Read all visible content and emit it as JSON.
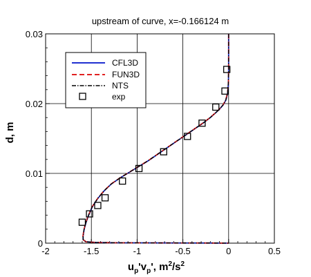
{
  "chart_data": {
    "type": "line",
    "title": "upstream of curve, x=-0.166124 m",
    "xlabel": "u_p'v_p', m²/s²",
    "xlabel_parts": {
      "base1": "u",
      "sub1": "p",
      "mid": "'v",
      "sub2": "p",
      "tail": "', m",
      "sup1": "2",
      "slash": "/s",
      "sup2": "2"
    },
    "ylabel": "d, m",
    "xlim": [
      -2,
      0.5
    ],
    "ylim": [
      0,
      0.03
    ],
    "xticks": [
      -2,
      -1.5,
      -1,
      -0.5,
      0,
      0.5
    ],
    "xtick_labels": [
      "-2",
      "-1.5",
      "-1",
      "-0.5",
      "0",
      "0.5"
    ],
    "yticks": [
      0,
      0.01,
      0.02,
      0.03
    ],
    "ytick_labels": [
      "0",
      "0.01",
      "0.02",
      "0.03"
    ],
    "grid": true,
    "legend_position": "top-left",
    "series": [
      {
        "name": "CFL3D",
        "style": "solid",
        "color": "#1f2fd0",
        "x": [
          0.0,
          0.0,
          -0.002,
          -0.01,
          -0.03,
          -0.06,
          -0.1,
          -0.14,
          -0.2,
          -0.28,
          -0.38,
          -0.48,
          -0.58,
          -0.68,
          -0.78,
          -0.88,
          -0.98,
          -1.08,
          -1.18,
          -1.28,
          -1.36,
          -1.43,
          -1.49,
          -1.53,
          -1.56,
          -1.58,
          -1.59,
          -1.59,
          -1.56,
          -1.45,
          -1.2,
          -0.7,
          -0.2,
          0.0
        ],
        "y": [
          0.03,
          0.025,
          0.023,
          0.0215,
          0.0205,
          0.0198,
          0.0192,
          0.0187,
          0.018,
          0.0172,
          0.0163,
          0.0154,
          0.0145,
          0.0136,
          0.0127,
          0.0118,
          0.011,
          0.0102,
          0.0094,
          0.0085,
          0.0075,
          0.0064,
          0.0052,
          0.004,
          0.0029,
          0.0019,
          0.001,
          0.0005,
          0.0002,
          0.0001,
          5e-05,
          3e-05,
          2e-05,
          0.0
        ]
      },
      {
        "name": "FUN3D",
        "style": "dashed",
        "color": "#e02020",
        "x": [
          0.0,
          0.0,
          -0.002,
          -0.012,
          -0.032,
          -0.062,
          -0.102,
          -0.142,
          -0.202,
          -0.282,
          -0.382,
          -0.482,
          -0.582,
          -0.682,
          -0.782,
          -0.882,
          -0.982,
          -1.082,
          -1.182,
          -1.282,
          -1.362,
          -1.432,
          -1.492,
          -1.532,
          -1.562,
          -1.582,
          -1.592,
          -1.59,
          -1.56,
          -1.45,
          -1.2,
          -0.7,
          -0.2,
          0.0
        ],
        "y": [
          0.03,
          0.025,
          0.023,
          0.0215,
          0.0205,
          0.0198,
          0.0192,
          0.0187,
          0.018,
          0.0172,
          0.0163,
          0.0154,
          0.0145,
          0.0136,
          0.0127,
          0.0118,
          0.011,
          0.0102,
          0.0094,
          0.0085,
          0.0075,
          0.0064,
          0.0052,
          0.004,
          0.0029,
          0.0019,
          0.001,
          0.0005,
          0.0002,
          0.0001,
          5e-05,
          3e-05,
          2e-05,
          0.0
        ]
      },
      {
        "name": "NTS",
        "style": "dashdot",
        "color": "#000000",
        "x": [
          0.0,
          0.0,
          -0.003,
          -0.011,
          -0.031,
          -0.061,
          -0.101,
          -0.141,
          -0.201,
          -0.281,
          -0.381,
          -0.481,
          -0.581,
          -0.681,
          -0.781,
          -0.881,
          -0.981,
          -1.081,
          -1.181,
          -1.281,
          -1.361,
          -1.431,
          -1.491,
          -1.531,
          -1.561,
          -1.581,
          -1.591,
          -1.59,
          -1.56,
          -1.45,
          -1.2,
          -0.7,
          -0.2,
          0.0
        ],
        "y": [
          0.03,
          0.025,
          0.023,
          0.0215,
          0.0205,
          0.0198,
          0.0192,
          0.0187,
          0.018,
          0.0172,
          0.0163,
          0.0154,
          0.0145,
          0.0136,
          0.0127,
          0.0118,
          0.011,
          0.0102,
          0.0094,
          0.0085,
          0.0075,
          0.0064,
          0.0052,
          0.004,
          0.0029,
          0.0019,
          0.001,
          0.0005,
          0.0002,
          0.0001,
          5e-05,
          3e-05,
          2e-05,
          0.0
        ]
      },
      {
        "name": "exp",
        "style": "markers",
        "marker": "square",
        "color": "#000000",
        "x": [
          -1.6,
          -1.52,
          -1.43,
          -1.35,
          -1.16,
          -0.98,
          -0.71,
          -0.45,
          -0.29,
          -0.14,
          -0.04,
          -0.02
        ],
        "y": [
          0.003,
          0.0042,
          0.0054,
          0.0065,
          0.0089,
          0.0107,
          0.0131,
          0.0153,
          0.0172,
          0.0195,
          0.0218,
          0.0249
        ]
      }
    ]
  }
}
